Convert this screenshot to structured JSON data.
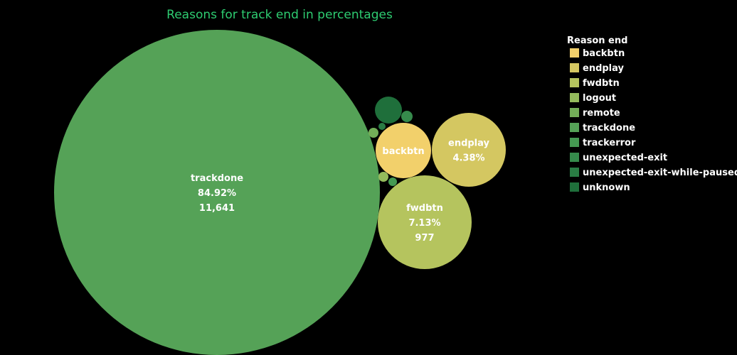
{
  "chart_data": {
    "type": "bubble",
    "title": "Reasons for track end in percentages",
    "legend_title": "Reason end",
    "legend_position": "top-right",
    "legend": [
      {
        "name": "backbtn",
        "color": "#f2d06b"
      },
      {
        "name": "endplay",
        "color": "#d4c761"
      },
      {
        "name": "fwdbtn",
        "color": "#b5c45e"
      },
      {
        "name": "logout",
        "color": "#94bb5c"
      },
      {
        "name": "remote",
        "color": "#73ae58"
      },
      {
        "name": "trackdone",
        "color": "#55a257"
      },
      {
        "name": "trackerror",
        "color": "#459952"
      },
      {
        "name": "unexpected-exit",
        "color": "#368a4c"
      },
      {
        "name": "unexpected-exit-while-paused",
        "color": "#2a7c44"
      },
      {
        "name": "unknown",
        "color": "#1f6f3b"
      }
    ],
    "bubbles": [
      {
        "category": "trackdone",
        "percent": 84.92,
        "count": 11641,
        "labels": [
          "trackdone",
          "84.92%",
          "11,641"
        ]
      },
      {
        "category": "fwdbtn",
        "percent": 7.13,
        "count": 977,
        "labels": [
          "fwdbtn",
          "7.13%",
          "977"
        ]
      },
      {
        "category": "endplay",
        "percent": 4.38,
        "labels": [
          "endplay",
          "4.38%"
        ]
      },
      {
        "category": "backbtn",
        "labels": [
          "backbtn"
        ]
      },
      {
        "category": "unknown",
        "labels": []
      },
      {
        "category": "unexpected-exit",
        "labels": []
      },
      {
        "category": "remote",
        "labels": []
      },
      {
        "category": "logout",
        "labels": []
      },
      {
        "category": "trackerror",
        "labels": []
      },
      {
        "category": "unexpected-exit-while-paused",
        "labels": []
      }
    ]
  }
}
